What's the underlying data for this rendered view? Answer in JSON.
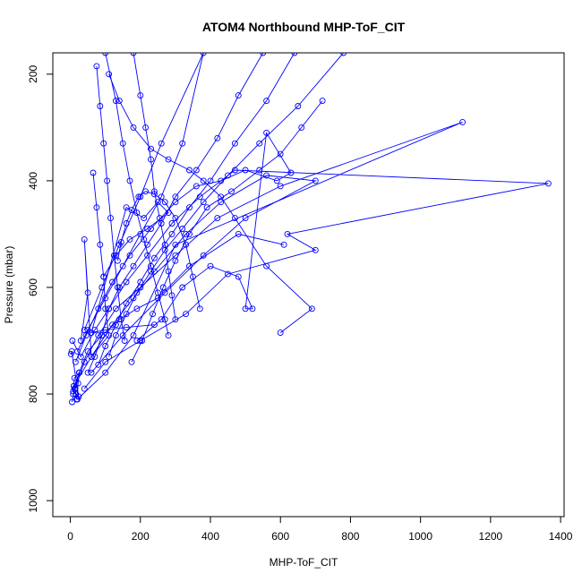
{
  "chart_data": {
    "type": "scatter",
    "title": "ATOM4 Northbound MHP-ToF_CIT",
    "xlabel": "MHP-ToF_CIT",
    "ylabel": "Pressure (mbar)",
    "xlim": [
      -50,
      1410
    ],
    "ylim": [
      1030,
      160
    ],
    "y_reversed": true,
    "grid": false,
    "legend": "none",
    "x_ticks": [
      0,
      200,
      400,
      600,
      800,
      1000,
      1200,
      1400
    ],
    "y_ticks": [
      200,
      400,
      600,
      800,
      1000
    ],
    "line_color": "#0000ff",
    "point_style": "open-circle",
    "series": [
      {
        "points": [
          [
            5,
            815
          ],
          [
            12,
            790
          ],
          [
            25,
            760
          ],
          [
            50,
            720
          ],
          [
            90,
            690
          ],
          [
            140,
            660
          ],
          [
            190,
            640
          ],
          [
            250,
            620
          ],
          [
            340,
            560
          ],
          [
            480,
            500
          ],
          [
            610,
            520
          ]
        ]
      },
      {
        "points": [
          [
            8,
            800
          ],
          [
            40,
            740
          ],
          [
            80,
            690
          ],
          [
            130,
            640
          ],
          [
            200,
            600
          ],
          [
            300,
            540
          ],
          [
            420,
            470
          ],
          [
            600,
            410
          ],
          [
            1120,
            290
          ],
          [
            300,
            520
          ],
          [
            180,
            690
          ],
          [
            100,
            760
          ],
          [
            20,
            810
          ]
        ]
      },
      {
        "points": [
          [
            10,
            785
          ],
          [
            60,
            730
          ],
          [
            120,
            670
          ],
          [
            180,
            620
          ],
          [
            240,
            570
          ],
          [
            330,
            500
          ],
          [
            430,
            440
          ],
          [
            560,
            390
          ],
          [
            700,
            400
          ],
          [
            500,
            470
          ],
          [
            380,
            540
          ],
          [
            270,
            610
          ],
          [
            150,
            690
          ],
          [
            60,
            760
          ]
        ]
      },
      {
        "points": [
          [
            6,
            700
          ],
          [
            30,
            730
          ],
          [
            70,
            680
          ],
          [
            110,
            640
          ],
          [
            160,
            590
          ],
          [
            220,
            540
          ],
          [
            290,
            480
          ],
          [
            370,
            430
          ],
          [
            470,
            380
          ],
          [
            1365,
            405
          ],
          [
            620,
            500
          ],
          [
            700,
            530
          ],
          [
            450,
            575
          ],
          [
            330,
            650
          ],
          [
            200,
            700
          ],
          [
            100,
            740
          ],
          [
            40,
            790
          ]
        ]
      },
      {
        "points": [
          [
            15,
            740
          ],
          [
            45,
            690
          ],
          [
            80,
            640
          ],
          [
            120,
            590
          ],
          [
            170,
            540
          ],
          [
            230,
            490
          ],
          [
            300,
            440
          ],
          [
            360,
            410
          ],
          [
            430,
            400
          ],
          [
            500,
            380
          ],
          [
            590,
            400
          ],
          [
            630,
            385
          ],
          [
            560,
            310
          ],
          [
            500,
            640
          ],
          [
            520,
            640
          ],
          [
            480,
            580
          ],
          [
            400,
            560
          ],
          [
            320,
            600
          ],
          [
            260,
            660
          ],
          [
            190,
            700
          ]
        ]
      },
      {
        "points": [
          [
            20,
            720
          ],
          [
            50,
            680
          ],
          [
            100,
            620
          ],
          [
            150,
            560
          ],
          [
            200,
            500
          ],
          [
            260,
            430
          ],
          [
            320,
            330
          ],
          [
            380,
            160
          ],
          [
            260,
            330
          ],
          [
            200,
            430
          ],
          [
            140,
            520
          ],
          [
            90,
            600
          ],
          [
            40,
            680
          ]
        ]
      },
      {
        "points": [
          [
            75,
            185
          ],
          [
            85,
            260
          ],
          [
            95,
            330
          ],
          [
            105,
            400
          ],
          [
            115,
            470
          ],
          [
            125,
            540
          ],
          [
            135,
            600
          ],
          [
            145,
            660
          ],
          [
            155,
            700
          ]
        ]
      },
      {
        "points": [
          [
            65,
            385
          ],
          [
            75,
            450
          ],
          [
            85,
            520
          ],
          [
            95,
            580
          ],
          [
            100,
            640
          ],
          [
            110,
            690
          ],
          [
            60,
            730
          ],
          [
            40,
            510
          ],
          [
            50,
            610
          ],
          [
            30,
            700
          ]
        ]
      },
      {
        "points": [
          [
            100,
            160
          ],
          [
            130,
            250
          ],
          [
            150,
            330
          ],
          [
            170,
            400
          ],
          [
            190,
            460
          ],
          [
            210,
            510
          ],
          [
            230,
            560
          ],
          [
            250,
            610
          ],
          [
            270,
            660
          ],
          [
            280,
            690
          ]
        ]
      },
      {
        "points": [
          [
            180,
            160
          ],
          [
            200,
            240
          ],
          [
            215,
            300
          ],
          [
            230,
            360
          ],
          [
            240,
            420
          ],
          [
            255,
            470
          ],
          [
            270,
            520
          ],
          [
            280,
            570
          ],
          [
            290,
            615
          ],
          [
            300,
            660
          ]
        ]
      },
      {
        "points": [
          [
            550,
            160
          ],
          [
            480,
            240
          ],
          [
            420,
            320
          ],
          [
            360,
            380
          ],
          [
            300,
            430
          ],
          [
            260,
            480
          ],
          [
            220,
            520
          ],
          [
            180,
            560
          ],
          [
            140,
            600
          ],
          [
            110,
            640
          ],
          [
            90,
            690
          ],
          [
            70,
            730
          ],
          [
            50,
            760
          ]
        ]
      },
      {
        "points": [
          [
            640,
            160
          ],
          [
            560,
            250
          ],
          [
            470,
            330
          ],
          [
            400,
            400
          ],
          [
            340,
            450
          ],
          [
            290,
            500
          ],
          [
            240,
            545
          ],
          [
            200,
            590
          ],
          [
            160,
            630
          ],
          [
            130,
            670
          ],
          [
            100,
            710
          ],
          [
            80,
            745
          ]
        ]
      },
      {
        "points": [
          [
            780,
            160
          ],
          [
            650,
            260
          ],
          [
            540,
            330
          ],
          [
            450,
            390
          ],
          [
            380,
            440
          ],
          [
            320,
            490
          ],
          [
            270,
            530
          ],
          [
            230,
            570
          ],
          [
            190,
            610
          ],
          [
            160,
            650
          ],
          [
            130,
            690
          ],
          [
            110,
            730
          ]
        ]
      },
      {
        "points": [
          [
            10,
            785
          ],
          [
            14,
            790
          ],
          [
            18,
            810
          ],
          [
            22,
            780
          ],
          [
            26,
            760
          ],
          [
            12,
            770
          ],
          [
            8,
            795
          ],
          [
            16,
            800
          ],
          [
            24,
            805
          ],
          [
            4,
            720
          ],
          [
            2,
            725
          ]
        ]
      },
      {
        "points": [
          [
            600,
            685
          ],
          [
            690,
            640
          ],
          [
            560,
            560
          ],
          [
            470,
            470
          ],
          [
            430,
            430
          ],
          [
            380,
            400
          ],
          [
            340,
            380
          ],
          [
            280,
            360
          ],
          [
            230,
            340
          ],
          [
            180,
            300
          ],
          [
            140,
            250
          ],
          [
            110,
            200
          ]
        ]
      },
      {
        "points": [
          [
            240,
            670
          ],
          [
            160,
            675
          ],
          [
            100,
            680
          ],
          [
            60,
            685
          ],
          [
            160,
            450
          ],
          [
            210,
            470
          ],
          [
            250,
            440
          ],
          [
            280,
            460
          ],
          [
            220,
            490
          ],
          [
            170,
            510
          ],
          [
            130,
            540
          ],
          [
            95,
            580
          ]
        ]
      },
      {
        "points": [
          [
            175,
            740
          ],
          [
            205,
            700
          ],
          [
            235,
            650
          ],
          [
            265,
            600
          ],
          [
            300,
            550
          ],
          [
            340,
            500
          ],
          [
            390,
            450
          ],
          [
            460,
            420
          ],
          [
            540,
            380
          ],
          [
            600,
            350
          ],
          [
            660,
            300
          ],
          [
            720,
            250
          ]
        ]
      },
      {
        "points": [
          [
            135,
            550
          ],
          [
            145,
            515
          ],
          [
            160,
            480
          ],
          [
            175,
            455
          ],
          [
            195,
            430
          ],
          [
            215,
            420
          ],
          [
            240,
            425
          ],
          [
            270,
            440
          ],
          [
            300,
            470
          ],
          [
            330,
            520
          ],
          [
            350,
            580
          ],
          [
            370,
            640
          ]
        ]
      }
    ]
  }
}
